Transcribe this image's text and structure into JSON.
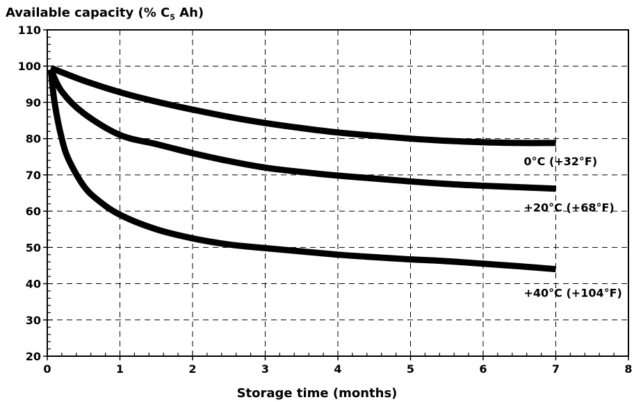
{
  "chart_data": {
    "type": "line",
    "title_prefix": "Available capacity (% C",
    "title_sub": "5",
    "title_suffix": " Ah)",
    "xlabel": "Storage time (months)",
    "xlim": [
      0,
      8
    ],
    "ylim": [
      20,
      110
    ],
    "xticks": [
      0,
      1,
      2,
      3,
      4,
      5,
      6,
      7,
      8
    ],
    "yticks": [
      20,
      30,
      40,
      50,
      60,
      70,
      80,
      90,
      100,
      110
    ],
    "grid": true,
    "series": [
      {
        "name": "0°C (+32°F)",
        "x": [
          0.05,
          0.5,
          1,
          1.5,
          2,
          2.5,
          3,
          3.5,
          4,
          4.5,
          5,
          5.5,
          6,
          6.5,
          7
        ],
        "y": [
          99.5,
          96,
          92.8,
          90.2,
          88,
          86,
          84.3,
          82.9,
          81.7,
          80.8,
          80,
          79.4,
          79,
          78.8,
          78.8
        ]
      },
      {
        "name": "+20°C (+68°F)",
        "x": [
          0.05,
          0.2,
          0.5,
          1,
          1.5,
          2,
          2.5,
          3,
          3.5,
          4,
          4.5,
          5,
          5.5,
          6,
          6.5,
          7
        ],
        "y": [
          99,
          93,
          87,
          81,
          78.5,
          76,
          73.8,
          72,
          70.8,
          69.8,
          69,
          68.2,
          67.5,
          67,
          66.6,
          66.2
        ]
      },
      {
        "name": "+40°C (+104°F)",
        "x": [
          0.05,
          0.1,
          0.2,
          0.3,
          0.5,
          0.7,
          1,
          1.5,
          2,
          2.5,
          3,
          3.5,
          4,
          4.5,
          5,
          5.5,
          6,
          6.5,
          7
        ],
        "y": [
          99,
          90,
          80,
          74,
          67,
          63,
          59,
          55,
          52.5,
          50.8,
          49.8,
          48.9,
          48,
          47.3,
          46.7,
          46.2,
          45.5,
          44.8,
          44
        ]
      }
    ]
  }
}
